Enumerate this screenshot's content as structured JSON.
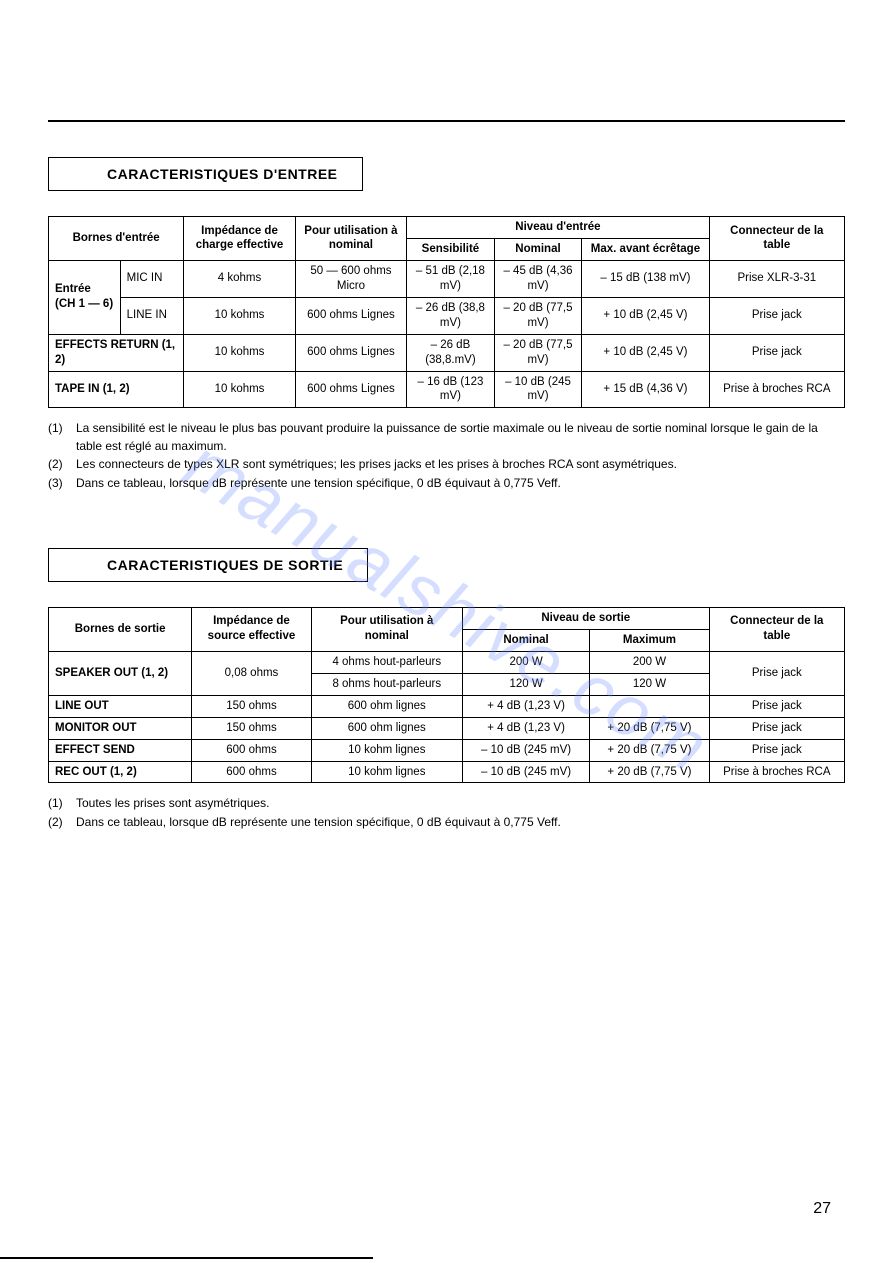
{
  "page_number": "27",
  "watermark": "manualshive.com",
  "section1": {
    "title": "CARACTERISTIQUES D'ENTREE",
    "headers": {
      "h1": "Bornes d'entrée",
      "h2": "Impédance de charge effective",
      "h3": "Pour utilisation à nominal",
      "h4": "Niveau d'entrée",
      "h5": "Connecteur de la table",
      "h4a": "Sensibilité",
      "h4b": "Nominal",
      "h4c": "Max. avant écrêtage"
    },
    "rows": {
      "r1_group": "Entrée (CH 1 — 6)",
      "r1_sub": "MIC IN",
      "r1_imp": "4 kohms",
      "r1_use": "50 — 600 ohms Micro",
      "r1_sens": "– 51 dB (2,18 mV)",
      "r1_nom": "– 45 dB (4,36 mV)",
      "r1_max": "– 15 dB (138 mV)",
      "r1_conn": "Prise XLR-3-31",
      "r2_sub": "LINE IN",
      "r2_imp": "10 kohms",
      "r2_use": "600 ohms Lignes",
      "r2_sens": "– 26 dB (38,8 mV)",
      "r2_nom": "– 20 dB (77,5 mV)",
      "r2_max": "+ 10 dB (2,45 V)",
      "r2_conn": "Prise jack",
      "r3_group": "EFFECTS RETURN (1, 2)",
      "r3_imp": "10 kohms",
      "r3_use": "600 ohms Lignes",
      "r3_sens": "– 26 dB (38,8.mV)",
      "r3_nom": "– 20 dB (77,5 mV)",
      "r3_max": "+ 10 dB (2,45 V)",
      "r3_conn": "Prise jack",
      "r4_group": "TAPE IN (1, 2)",
      "r4_imp": "10 kohms",
      "r4_use": "600 ohms Lignes",
      "r4_sens": "– 16 dB (123 mV)",
      "r4_nom": "– 10 dB (245 mV)",
      "r4_max": "+ 15 dB (4,36 V)",
      "r4_conn": "Prise à broches RCA"
    },
    "notes": {
      "n1_num": "(1)",
      "n1": "La sensibilité est le niveau le plus bas pouvant produire la puissance de sortie maximale ou le niveau de sortie nominal lorsque le gain de la table est réglé au maximum.",
      "n2_num": "(2)",
      "n2": "Les connecteurs de types XLR sont symétriques; les prises jacks et les prises à broches RCA sont asymétriques.",
      "n3_num": "(3)",
      "n3": "Dans ce tableau, lorsque dB représente une tension spécifique, 0 dB équivaut à 0,775 Veff."
    }
  },
  "section2": {
    "title": "CARACTERISTIQUES DE SORTIE",
    "headers": {
      "h1": "Bornes de sortie",
      "h2": "Impédance de source effective",
      "h3": "Pour utilisation à nominal",
      "h4": "Niveau de sortie",
      "h5": "Connecteur de la table",
      "h4a": "Nominal",
      "h4b": "Maximum"
    },
    "rows": {
      "r1_name": "SPEAKER OUT (1, 2)",
      "r1_imp": "0,08 ohms",
      "r1_use_a": "4 ohms hout-parleurs",
      "r1_nom_a": "200 W",
      "r1_max_a": "200 W",
      "r1_use_b": "8 ohms hout-parleurs",
      "r1_nom_b": "120 W",
      "r1_max_b": "120 W",
      "r1_conn": "Prise jack",
      "r2_name": "LINE OUT",
      "r2_imp": "150 ohms",
      "r2_use": "600 ohm lignes",
      "r2_nom": "+ 4 dB (1,23 V)",
      "r2_max": "",
      "r2_conn": "Prise jack",
      "r3_name": "MONITOR OUT",
      "r3_imp": "150 ohms",
      "r3_use": "600 ohm lignes",
      "r3_nom": "+ 4 dB (1,23 V)",
      "r3_max": "+ 20 dB (7,75 V)",
      "r3_conn": "Prise jack",
      "r4_name": "EFFECT SEND",
      "r4_imp": "600 ohms",
      "r4_use": "10 kohm lignes",
      "r4_nom": "– 10 dB (245 mV)",
      "r4_max": "+ 20 dB (7,75 V)",
      "r4_conn": "Prise jack",
      "r5_name": "REC OUT (1, 2)",
      "r5_imp": "600 ohms",
      "r5_use": "10 kohm lignes",
      "r5_nom": "– 10 dB (245 mV)",
      "r5_max": "+ 20 dB (7,75 V)",
      "r5_conn": "Prise à broches RCA"
    },
    "notes": {
      "n1_num": "(1)",
      "n1": "Toutes les prises sont asymétriques.",
      "n2_num": "(2)",
      "n2": "Dans ce tableau, lorsque dB représente une tension spécifique, 0 dB équivaut à 0,775 Veff."
    }
  }
}
